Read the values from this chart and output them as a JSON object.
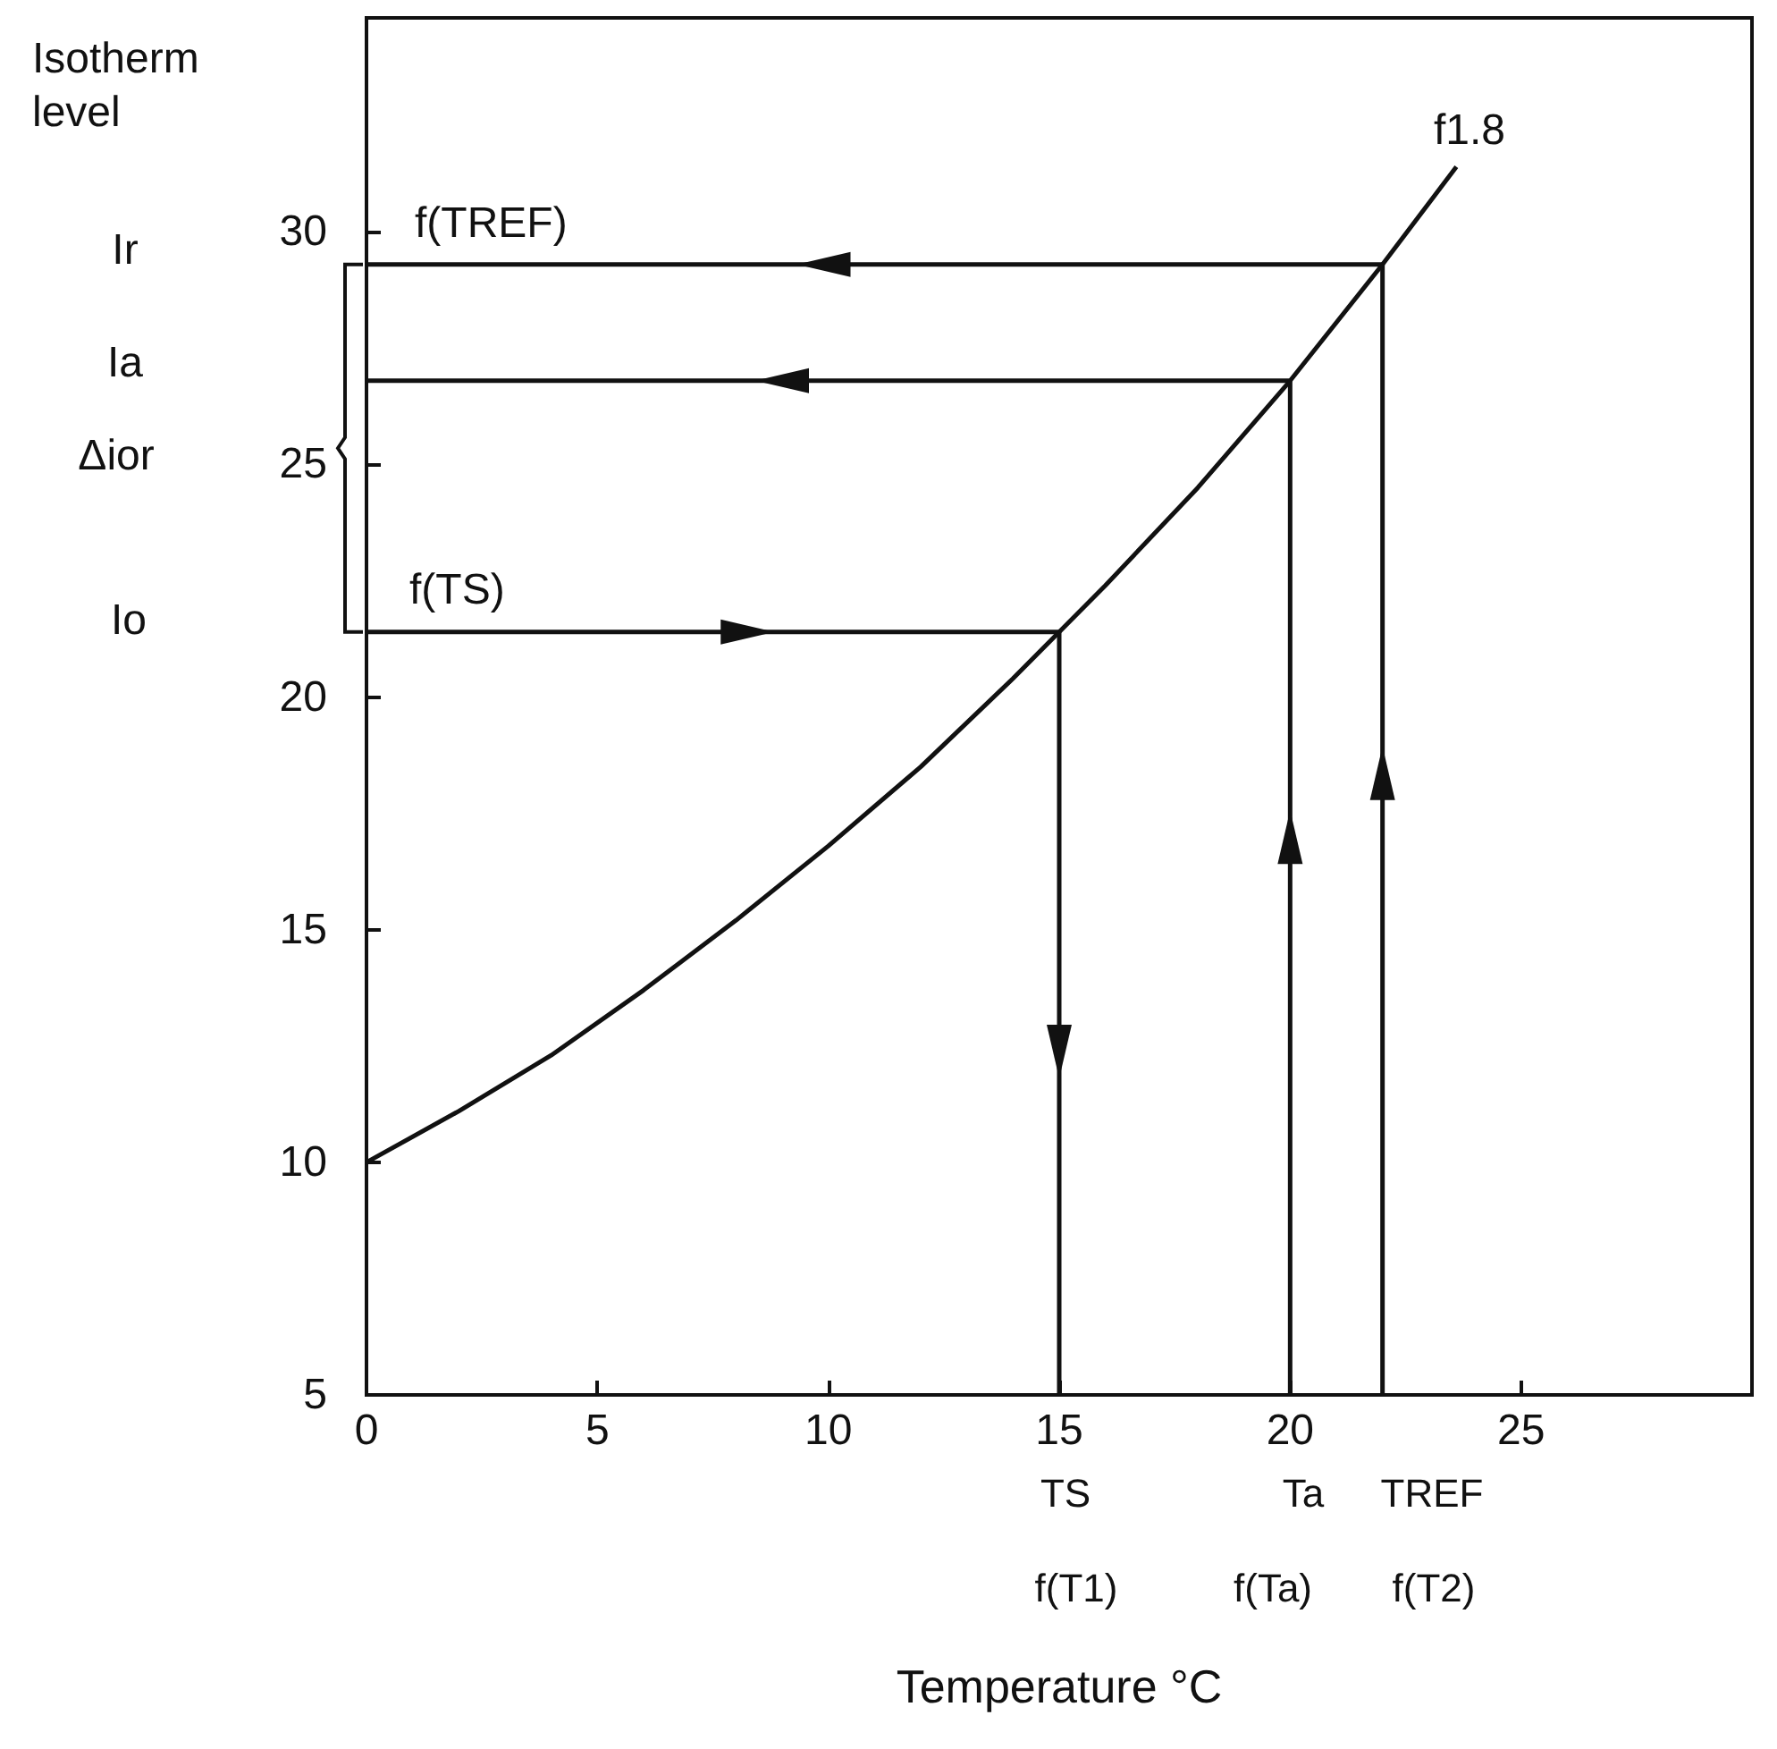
{
  "chart_data": {
    "type": "line",
    "ylabel": "Isotherm level",
    "xlabel": "Temperature °C",
    "xlim": [
      0,
      30
    ],
    "xticks": [
      0,
      5,
      10,
      15,
      20,
      25
    ],
    "ylim": [
      5,
      34.6
    ],
    "yticks": [
      5,
      10,
      15,
      20,
      25,
      30
    ],
    "series": [
      {
        "color": "#111111",
        "x": [
          0,
          2,
          4,
          6,
          8,
          10,
          12,
          14,
          15,
          16,
          18,
          20,
          22,
          23.6
        ],
        "values": [
          10,
          11.1,
          12.3,
          13.7,
          15.2,
          16.8,
          18.5,
          20.4,
          21.4,
          22.4,
          24.5,
          26.8,
          29.3,
          31.4
        ]
      },
      {
        "color": "#111111",
        "x": [
          22,
          0
        ],
        "values": [
          29.3,
          29.3
        ]
      },
      {
        "color": "#111111",
        "x": [
          20,
          0
        ],
        "values": [
          26.8,
          26.8
        ]
      },
      {
        "color": "#111111",
        "x": [
          0,
          15
        ],
        "values": [
          21.4,
          21.4
        ]
      },
      {
        "color": "#111111",
        "x": [
          15,
          15
        ],
        "values": [
          21.4,
          5
        ]
      },
      {
        "color": "#111111",
        "x": [
          20,
          20
        ],
        "values": [
          5,
          26.8
        ]
      },
      {
        "color": "#111111",
        "x": [
          22,
          22
        ],
        "values": [
          5,
          29.3
        ]
      }
    ],
    "annotations": [
      "f1.8",
      "f(TREF)",
      "f(TS)",
      "Ir",
      "Ia",
      "Δior",
      "Io",
      "TS",
      "f(T1)",
      "Ta",
      "f(Ta)",
      "TREF",
      "f(T2)"
    ]
  }
}
